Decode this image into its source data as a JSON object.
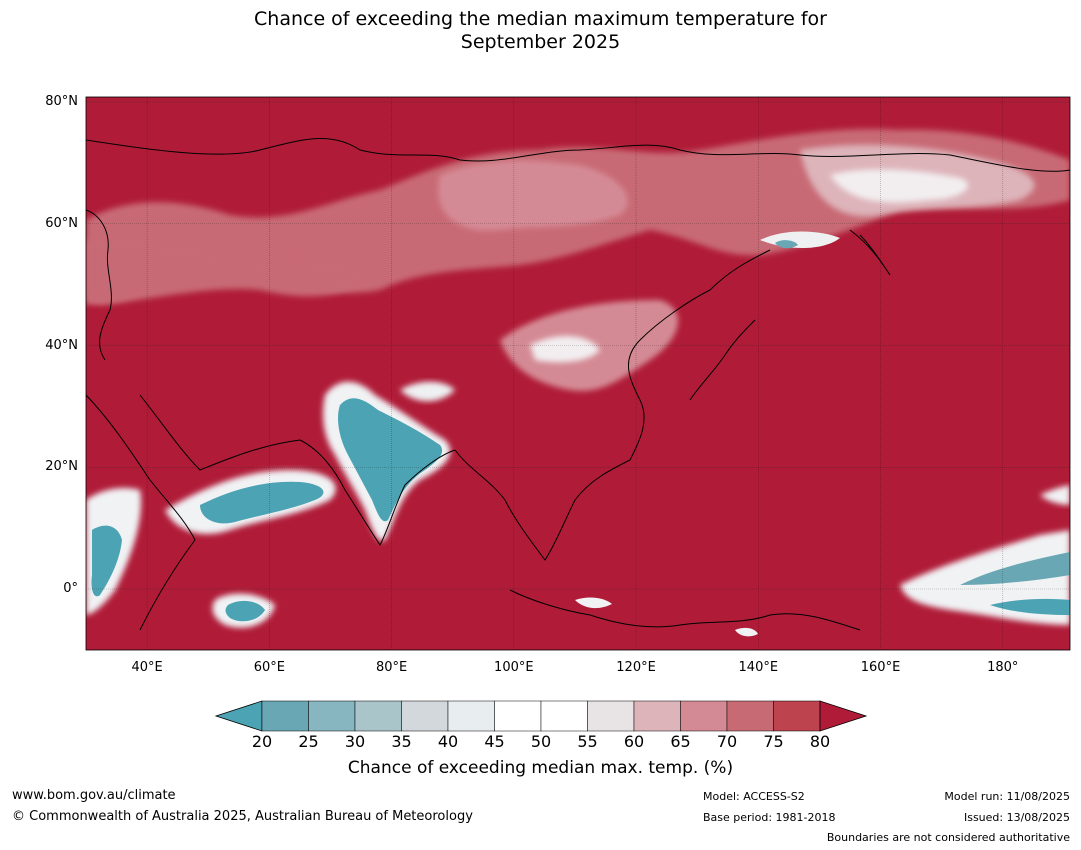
{
  "title_line1": "Chance of exceeding the median maximum temperature for",
  "title_line2": "September 2025",
  "map": {
    "lat_labels": [
      {
        "label": "80°N",
        "lat": 80
      },
      {
        "label": "60°N",
        "lat": 60
      },
      {
        "label": "40°N",
        "lat": 40
      },
      {
        "label": "20°N",
        "lat": 20
      },
      {
        "label": "0°",
        "lat": 0
      }
    ],
    "lon_labels": [
      {
        "label": "40°E",
        "lon": 40
      },
      {
        "label": "60°E",
        "lon": 60
      },
      {
        "label": "80°E",
        "lon": 80
      },
      {
        "label": "100°E",
        "lon": 100
      },
      {
        "label": "120°E",
        "lon": 120
      },
      {
        "label": "140°E",
        "lon": 140
      },
      {
        "label": "160°E",
        "lon": 160
      },
      {
        "label": "180°",
        "lon": 180
      }
    ],
    "extent": {
      "lon_min": 30,
      "lon_max": 191,
      "lat_min": -10,
      "lat_max": 81
    },
    "background_color": "#b01c38"
  },
  "colorbar": {
    "ticks": [
      "20",
      "25",
      "30",
      "35",
      "40",
      "45",
      "50",
      "55",
      "60",
      "65",
      "70",
      "75",
      "80"
    ],
    "below_color": "#4ba3b4",
    "above_color": "#b01c38",
    "bin_colors": [
      "#6aa7b4",
      "#87b5c0",
      "#a9c5ca",
      "#d2d8db",
      "#e8eef0",
      "#ffffff",
      "#ffffff",
      "#e8e4e6",
      "#ddb4ba",
      "#d48a94",
      "#c86a74",
      "#bd434e"
    ],
    "label": "Chance of exceeding median max. temp. (%)"
  },
  "footer": {
    "url": "www.bom.gov.au/climate",
    "copyright": "© Commonwealth of Australia 2025, Australian Bureau of Meteorology",
    "model": "Model: ACCESS-S2",
    "base_period": "Base period: 1981-2018",
    "model_run": "Model run: 11/08/2025",
    "issued": "Issued: 13/08/2025",
    "disclaimer": "Boundaries are not considered authoritative"
  }
}
